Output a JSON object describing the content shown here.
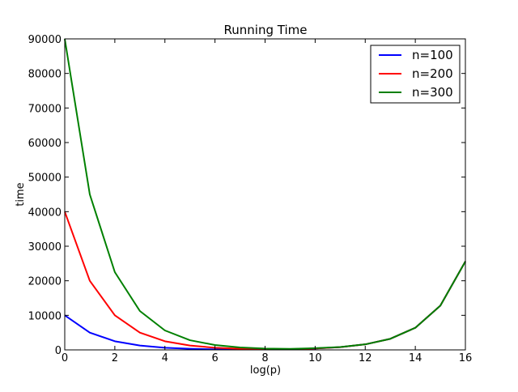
{
  "chart_data": {
    "type": "line",
    "title": "Running Time",
    "xlabel": "log(p)",
    "ylabel": "time",
    "xlim": [
      0,
      16
    ],
    "ylim": [
      0,
      90000
    ],
    "xticks": [
      "0",
      "2",
      "4",
      "6",
      "8",
      "10",
      "12",
      "14",
      "16"
    ],
    "yticks": [
      "0",
      "10000",
      "20000",
      "30000",
      "40000",
      "50000",
      "60000",
      "70000",
      "80000",
      "90000"
    ],
    "grid": false,
    "legend_position": "top-right",
    "x": [
      0,
      1,
      2,
      3,
      4,
      5,
      6,
      7,
      8,
      9,
      10,
      11,
      12,
      13,
      14,
      15,
      16
    ],
    "series": [
      {
        "name": "n=100",
        "color": "#0000ff",
        "values": [
          10000,
          5000,
          2500,
          1250,
          625,
          315,
          160,
          130,
          130,
          120,
          400,
          800,
          1600,
          3200,
          6400,
          12800,
          25600
        ]
      },
      {
        "name": "n=200",
        "color": "#ff0000",
        "values": [
          40000,
          20000,
          10000,
          5000,
          2500,
          1250,
          625,
          320,
          160,
          200,
          400,
          800,
          1600,
          3200,
          6400,
          12800,
          25600
        ]
      },
      {
        "name": "n=300",
        "color": "#008000",
        "values": [
          90000,
          45000,
          22500,
          11250,
          5625,
          2800,
          1400,
          700,
          380,
          300,
          500,
          820,
          1600,
          3200,
          6400,
          12800,
          25600
        ]
      }
    ]
  }
}
